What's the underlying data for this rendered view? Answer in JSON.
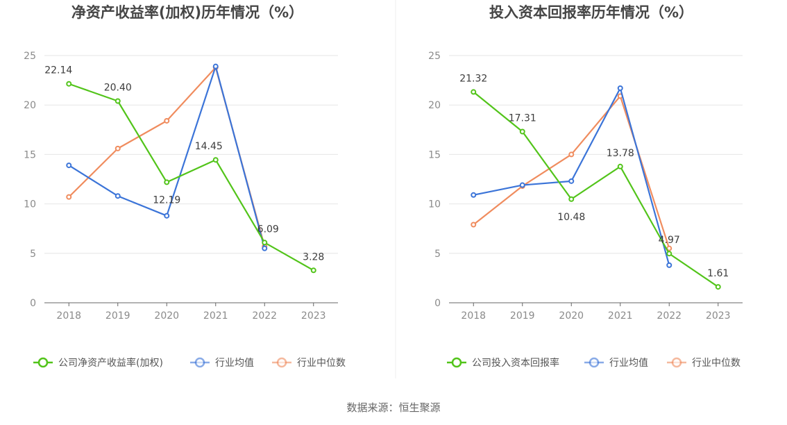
{
  "footer": "数据来源：恒生聚源",
  "colors": {
    "company": "#52c41a",
    "avg": "#3b74d8",
    "median": "#f08c5e",
    "grid": "#e6e6e6",
    "axis": "#666666",
    "divider": "#ececec"
  },
  "chart_data": [
    {
      "type": "line",
      "title": "净资产收益率(加权)历年情况（%）",
      "categories": [
        "2018",
        "2019",
        "2020",
        "2021",
        "2022",
        "2023"
      ],
      "ylim": [
        0,
        25
      ],
      "yticks": [
        0,
        5,
        10,
        15,
        20,
        25
      ],
      "series": [
        {
          "name": "公司净资产收益率(加权)",
          "key": "company",
          "values": [
            22.14,
            20.4,
            12.19,
            14.45,
            6.09,
            3.28
          ],
          "labels": [
            "22.14",
            "20.40",
            "12.19",
            "14.45",
            "6.09",
            "3.28"
          ]
        },
        {
          "name": "行业均值",
          "key": "avg",
          "values": [
            13.9,
            10.8,
            8.8,
            23.9,
            5.5,
            null
          ]
        },
        {
          "name": "行业中位数",
          "key": "median",
          "values": [
            10.7,
            15.6,
            18.4,
            23.8,
            5.7,
            null
          ]
        }
      ]
    },
    {
      "type": "line",
      "title": "投入资本回报率历年情况（%）",
      "categories": [
        "2018",
        "2019",
        "2020",
        "2021",
        "2022",
        "2023"
      ],
      "ylim": [
        0,
        25
      ],
      "yticks": [
        0,
        5,
        10,
        15,
        20,
        25
      ],
      "series": [
        {
          "name": "公司投入资本回报率",
          "key": "company",
          "values": [
            21.32,
            17.31,
            10.48,
            13.78,
            4.97,
            1.61
          ],
          "labels": [
            "21.32",
            "17.31",
            "10.48",
            "13.78",
            "4.97",
            "1.61"
          ]
        },
        {
          "name": "行业均值",
          "key": "avg",
          "values": [
            10.9,
            11.9,
            12.3,
            21.7,
            3.8,
            null
          ]
        },
        {
          "name": "行业中位数",
          "key": "median",
          "values": [
            7.9,
            11.8,
            15.0,
            20.9,
            5.5,
            null
          ]
        }
      ]
    }
  ]
}
